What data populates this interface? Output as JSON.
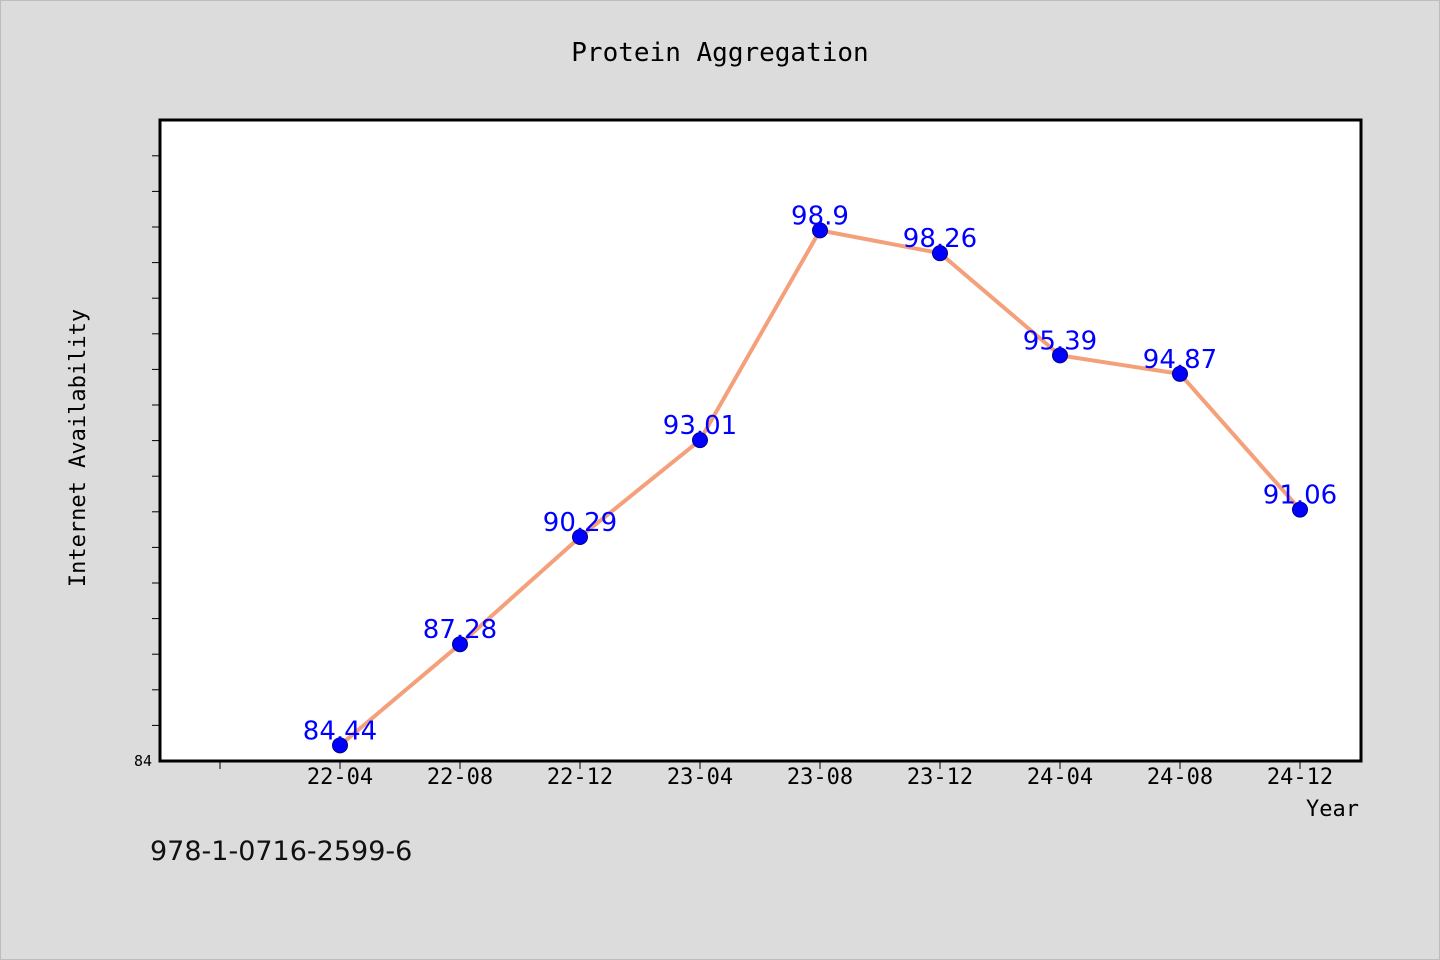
{
  "chart_data": {
    "type": "line",
    "title": "Protein Aggregation",
    "xlabel": "Year",
    "ylabel": "Internet Availability",
    "categories": [
      "22-04",
      "22-08",
      "22-12",
      "23-04",
      "23-08",
      "23-12",
      "24-04",
      "24-08",
      "24-12"
    ],
    "series": [
      {
        "values": [
          84.44,
          87.28,
          90.29,
          93.01,
          98.9,
          98.26,
          95.39,
          94.87,
          91.06
        ],
        "labels": [
          "84.44",
          "87.28",
          "90.29",
          "93.01",
          "98.9",
          "98.26",
          "95.39",
          "94.87",
          "91.06"
        ]
      }
    ],
    "ylim": [
      84,
      102
    ],
    "y_tick_labels": [
      "84"
    ],
    "grid": false,
    "line_color": "#f4a07a",
    "marker_color": "#0000ff",
    "label_color": "#0000ff"
  },
  "footer": {
    "code": "978-1-0716-2599-6"
  }
}
